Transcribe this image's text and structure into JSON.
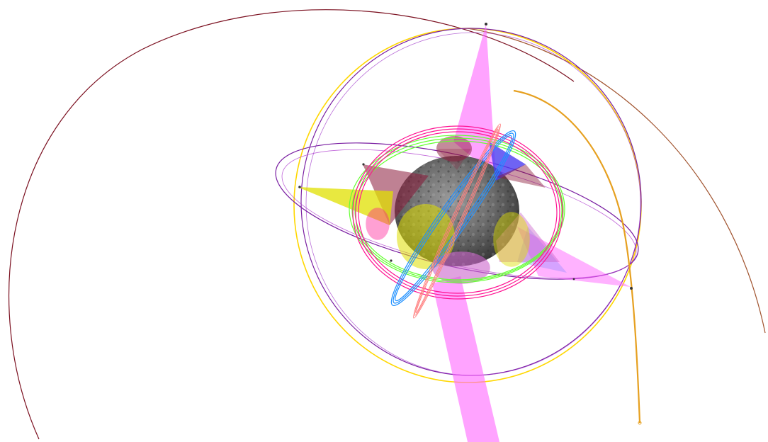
{
  "scene": {
    "type": "3d-orbit-visualization",
    "central_body": "asteroid",
    "background": "#ffffff"
  },
  "colors": {
    "asteroid_dark": "#3a3a3a",
    "asteroid_mid": "#6e6e6e",
    "asteroid_light": "#9a9a9a",
    "pink_beam": "#ff66ff",
    "yellow_cone": "#e0e000",
    "maroon_cone": "#8b1a3a",
    "blue_triangle": "#4b3cf0",
    "violet_triangle": "#cc66cc",
    "magenta_orbit": "#ff1493",
    "green_orbit": "#66ff33",
    "blue_orbit": "#1e90ff",
    "salmon_orbit": "#ff7f7f",
    "purple_orbit": "#7a1fa2",
    "yellow_orbit": "#ffd700",
    "dark_red_orbit": "#7b1020",
    "brown_orbit": "#a0522d",
    "orange_trajectory": "#e6a020"
  },
  "icons": [
    "spacecraft-marker-icon"
  ]
}
